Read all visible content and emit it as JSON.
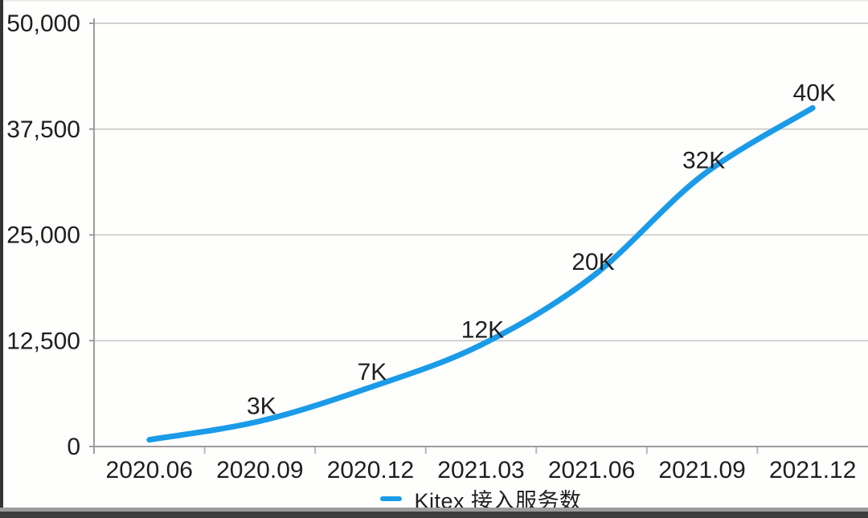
{
  "chart_data": {
    "type": "line",
    "title": "",
    "xlabel": "",
    "ylabel": "",
    "categories": [
      "2020.06",
      "2020.09",
      "2020.12",
      "2021.03",
      "2021.06",
      "2021.09",
      "2021.12"
    ],
    "series": [
      {
        "name": "Kitex 接入服务数",
        "values": [
          800,
          3000,
          7000,
          12000,
          20000,
          32000,
          40000
        ],
        "point_labels": [
          "",
          "3K",
          "7K",
          "12K",
          "20K",
          "32K",
          "40K"
        ],
        "color": "#1A9BE8"
      }
    ],
    "ylim": [
      0,
      50000
    ],
    "yticks": [
      0,
      12500,
      25000,
      37500,
      50000
    ],
    "ytick_labels": [
      "0",
      "12,500",
      "25,000",
      "37,500",
      "50,000"
    ],
    "grid": "horizontal",
    "legend": {
      "position": "bottom",
      "entries": [
        {
          "label": "Kitex 接入服务数",
          "marker_color": "#1A9BE8"
        }
      ]
    }
  },
  "colors": {
    "accent_blue": "#1A9BE8",
    "grid_line": "#cbcbcb",
    "axis_line": "#9c9c9c",
    "text": "#1f1f1f",
    "background": "#fefefd",
    "screen_edge_dark": "#3d3d3d",
    "screen_edge_gray": "#9b9b9b"
  }
}
